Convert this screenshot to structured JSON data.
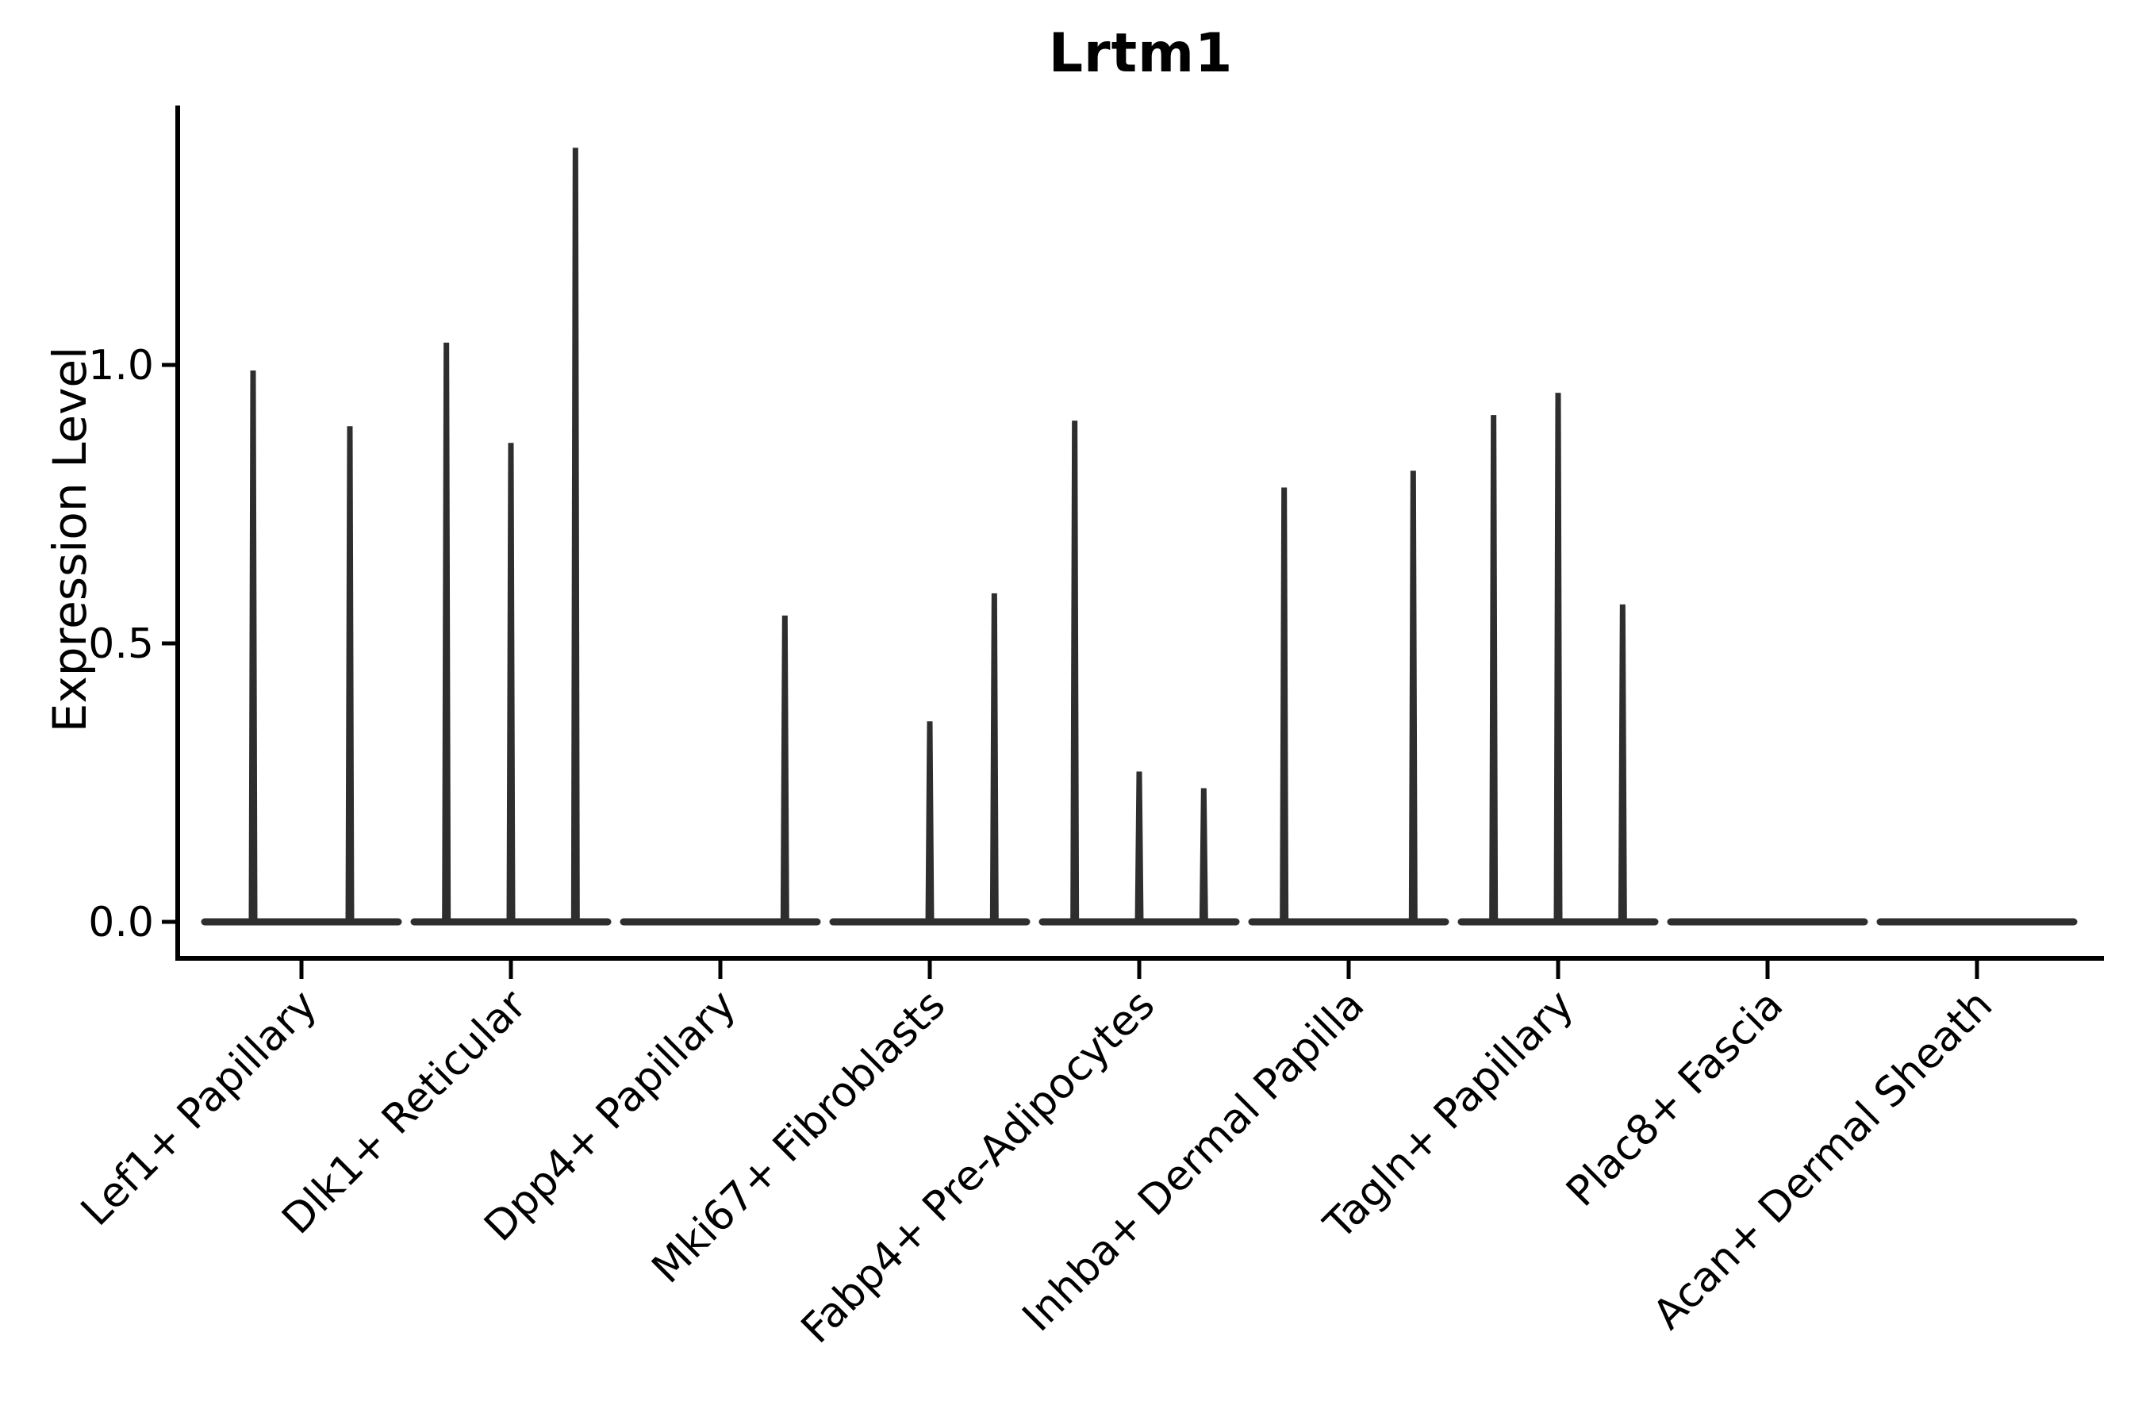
{
  "title": "Lrtm1",
  "ylabel": "Expression Level",
  "chart_data": {
    "type": "violin",
    "title": "Lrtm1",
    "xlabel": "",
    "ylabel": "Expression Level",
    "y_ticks": [
      0.0,
      0.5,
      1.0
    ],
    "ylim": [
      -0.07,
      1.46
    ],
    "legend": "none",
    "grid": false,
    "categories": [
      "Lef1+ Papillary",
      "Dlk1+ Reticular",
      "Dpp4+ Papillary",
      "Mki67+ Fibroblasts",
      "Fabp4+ Pre-Adipocytes",
      "Inhba+ Dermal Papilla",
      "Tagln+ Papillary",
      "Plac8+ Fascia",
      "Acan+ Dermal Sheath"
    ],
    "groups": [
      {
        "category": "Lef1+ Papillary",
        "violins": [
          0.99,
          0.89
        ]
      },
      {
        "category": "Dlk1+ Reticular",
        "violins": [
          1.04,
          0.86,
          1.39
        ]
      },
      {
        "category": "Dpp4+ Papillary",
        "violins": [
          0,
          0,
          0.55
        ]
      },
      {
        "category": "Mki67+ Fibroblasts",
        "violins": [
          0,
          0.36,
          0.59
        ]
      },
      {
        "category": "Fabp4+ Pre-Adipocytes",
        "violins": [
          0.9,
          0.27,
          0.24
        ]
      },
      {
        "category": "Inhba+ Dermal Papilla",
        "violins": [
          0.78,
          0,
          0.81
        ]
      },
      {
        "category": "Tagln+ Papillary",
        "violins": [
          0.91,
          0.95,
          0.57
        ]
      },
      {
        "category": "Plac8+ Fascia",
        "violins": [
          0,
          0,
          0
        ]
      },
      {
        "category": "Acan+ Dermal Sheath",
        "violins": [
          0,
          0,
          0
        ]
      }
    ],
    "colors": {
      "violin": "#2e2e2e",
      "axis": "#000000",
      "text": "#000000",
      "background": "#ffffff"
    }
  }
}
